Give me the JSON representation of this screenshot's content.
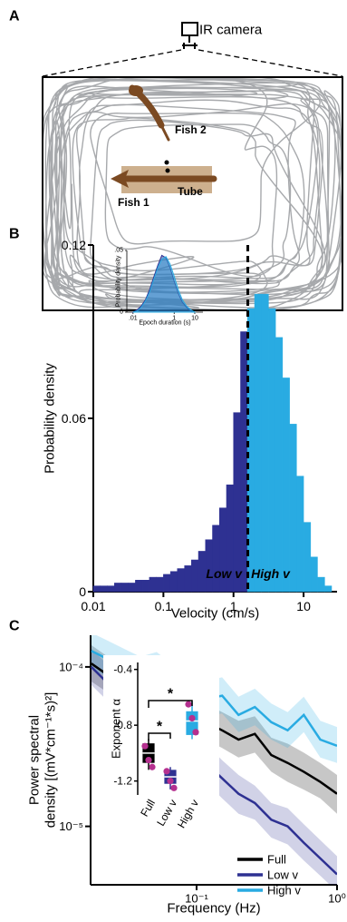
{
  "panel_labels": [
    "A",
    "B",
    "C"
  ],
  "diagram": {
    "camera_label": "IR camera",
    "fish_2": "Fish 2",
    "fish_1": "Fish 1",
    "tube": "Tube"
  },
  "chart_data": [
    {
      "type": "histogram",
      "ylabel": "Probability density",
      "xlabel": "Velocity (cm/s)",
      "xscale": "log",
      "xlim": [
        0.01,
        30
      ],
      "ylim": [
        0,
        0.12
      ],
      "xticks": [
        0.01,
        0.1,
        1,
        10
      ],
      "yticks": [
        0,
        0.06,
        0.12
      ],
      "bins": [
        0.01,
        0.0126,
        0.0158,
        0.02,
        0.0251,
        0.0316,
        0.0398,
        0.0501,
        0.0631,
        0.0794,
        0.1,
        0.126,
        0.158,
        0.2,
        0.251,
        0.316,
        0.398,
        0.501,
        0.631,
        0.794,
        1,
        1.26,
        1.58,
        2,
        2.51,
        3.16,
        3.98,
        5.01,
        6.31,
        7.94,
        10,
        12.6,
        15.8,
        20,
        25.1
      ],
      "threshold": 1.6,
      "series": [
        {
          "name": "Low v",
          "color": "#2e3192",
          "values": [
            0.002,
            0.002,
            0.002,
            0.003,
            0.003,
            0.003,
            0.004,
            0.004,
            0.005,
            0.005,
            0.006,
            0.007,
            0.008,
            0.009,
            0.011,
            0.014,
            0.018,
            0.023,
            0.029,
            0.037,
            0.062,
            0.09,
            null,
            null,
            null,
            null,
            null,
            null,
            null,
            null,
            null,
            null,
            null,
            null
          ]
        },
        {
          "name": "High v",
          "color": "#29abe2",
          "values": [
            null,
            null,
            null,
            null,
            null,
            null,
            null,
            null,
            null,
            null,
            null,
            null,
            null,
            null,
            null,
            null,
            null,
            null,
            null,
            null,
            null,
            null,
            0.098,
            0.103,
            0.103,
            0.098,
            0.088,
            0.074,
            0.058,
            0.04,
            0.024,
            0.012,
            0.005,
            0.002
          ]
        }
      ]
    },
    {
      "type": "area",
      "ylabel": "Probability density",
      "xlabel": "Epoch duration (s)",
      "xscale": "log",
      "xlim": [
        0.005,
        25
      ],
      "ylim": [
        0,
        0.05
      ],
      "xticks": [
        {
          "value": 0.01,
          "label": ".01"
        },
        1,
        10
      ],
      "yticks": [
        0,
        {
          "value": 0.05,
          "label": ".05"
        }
      ],
      "x": [
        0.01,
        0.016,
        0.025,
        0.04,
        0.063,
        0.1,
        0.16,
        0.25,
        0.4,
        0.63,
        1,
        1.6,
        2.5,
        4,
        6.3,
        10
      ],
      "series": [
        {
          "color": "#2e3192",
          "values": [
            0,
            0.002,
            0.005,
            0.01,
            0.018,
            0.028,
            0.038,
            0.046,
            0.044,
            0.036,
            0.025,
            0.015,
            0.008,
            0.004,
            0.001,
            0
          ]
        },
        {
          "color": "#29abe2",
          "values": [
            0,
            0.001,
            0.004,
            0.009,
            0.016,
            0.026,
            0.036,
            0.043,
            0.045,
            0.039,
            0.029,
            0.018,
            0.01,
            0.005,
            0.002,
            0
          ]
        }
      ]
    },
    {
      "type": "line",
      "ylabel": [
        "Power spectral",
        "density [(mV*cm⁻¹*s)²]"
      ],
      "xlabel": "Frequency (Hz)",
      "xscale": "log",
      "yscale": "log",
      "xlim": [
        0.0176,
        1
      ],
      "ylim": [
        4.3e-06,
        0.000158
      ],
      "xticks": [
        {
          "value": 0.1,
          "label": "10⁻¹"
        },
        {
          "value": 1,
          "label": "10⁰"
        }
      ],
      "yticks": [
        {
          "value": 0.0001,
          "label": "10⁻⁴"
        },
        {
          "value": 1e-05,
          "label": "10⁻⁵"
        }
      ],
      "x": [
        0.0178,
        0.0233,
        0.0304,
        0.0398,
        0.052,
        0.068,
        0.0889,
        0.116,
        0.152,
        0.199,
        0.26,
        0.34,
        0.445,
        0.58,
        0.76,
        1.0
      ],
      "series": [
        {
          "name": "Full",
          "color": "#000000",
          "values": [
            0.000105,
            8.9e-05,
            7.6e-05,
            7.9e-05,
            6.6e-05,
            5.6e-05,
            6e-05,
            4.5e-05,
            4e-05,
            3.5e-05,
            3.8e-05,
            2.8e-05,
            2.5e-05,
            2.2e-05,
            1.9e-05,
            1.6e-05
          ],
          "upper": [
            0.000137,
            0.000116,
            9.9e-05,
            0.000103,
            8.6e-05,
            7.3e-05,
            7.8e-05,
            5.9e-05,
            5.2e-05,
            4.6e-05,
            4.9e-05,
            3.6e-05,
            3.3e-05,
            2.9e-05,
            2.5e-05,
            2.1e-05
          ],
          "lower": [
            8.1e-05,
            6.9e-05,
            5.9e-05,
            6.1e-05,
            5.1e-05,
            4.3e-05,
            4.6e-05,
            3.5e-05,
            3.1e-05,
            2.7e-05,
            2.9e-05,
            2.2e-05,
            1.9e-05,
            1.7e-05,
            1.5e-05,
            1.2e-05
          ]
        },
        {
          "name": "Low v",
          "color": "#2e3192",
          "values": [
            0.0001,
            7.9e-05,
            6.3e-05,
            5e-05,
            4.5e-05,
            3.5e-05,
            3.2e-05,
            2.5e-05,
            2e-05,
            1.6e-05,
            1.4e-05,
            1.1e-05,
            1e-05,
            7.9e-06,
            6.3e-06,
            5e-06
          ],
          "upper": [
            0.00013,
            0.000103,
            8.2e-05,
            6.5e-05,
            5.9e-05,
            4.6e-05,
            4.2e-05,
            3.3e-05,
            2.6e-05,
            2.1e-05,
            1.8e-05,
            1.4e-05,
            1.3e-05,
            1.03e-05,
            8.2e-06,
            6.5e-06
          ],
          "lower": [
            7.7e-05,
            6.1e-05,
            4.9e-05,
            3.9e-05,
            3.5e-05,
            2.7e-05,
            2.5e-05,
            1.9e-05,
            1.5e-05,
            1.2e-05,
            1.1e-05,
            8.5e-06,
            7.7e-06,
            6.1e-06,
            4.9e-06,
            3.9e-06
          ]
        },
        {
          "name": "High v",
          "color": "#29abe2",
          "values": [
            0.000126,
            0.000112,
            0.0001,
            8.9e-05,
            9.5e-05,
            7.9e-05,
            7.1e-05,
            6.3e-05,
            6.6e-05,
            5e-05,
            5.6e-05,
            4.5e-05,
            4e-05,
            5e-05,
            3.5e-05,
            3.2e-05
          ],
          "upper": [
            0.000164,
            0.000146,
            0.00013,
            0.000116,
            0.000124,
            0.000103,
            9.2e-05,
            8.2e-05,
            8.6e-05,
            6.5e-05,
            7.3e-05,
            5.9e-05,
            5.2e-05,
            6.5e-05,
            4.6e-05,
            4.2e-05
          ],
          "lower": [
            9.7e-05,
            8.6e-05,
            7.7e-05,
            6.9e-05,
            7.3e-05,
            6.1e-05,
            5.5e-05,
            4.9e-05,
            5.1e-05,
            3.9e-05,
            4.3e-05,
            3.5e-05,
            3.1e-05,
            3.9e-05,
            2.7e-05,
            2.5e-05
          ]
        }
      ]
    },
    {
      "type": "box",
      "ylabel": "Exponent α",
      "categories": [
        "Full",
        "Low v",
        "High v"
      ],
      "ylim": [
        -1.3,
        -0.35
      ],
      "yticks": [
        -0.4,
        -0.8,
        -1.2
      ],
      "colors": [
        "#000000",
        "#2e3192",
        "#29abe2"
      ],
      "point_color": "#b5308f",
      "boxes": [
        {
          "whislo": -1.12,
          "q1": -1.07,
          "med": -1.0,
          "q3": -0.93,
          "whishi": -0.9
        },
        {
          "whislo": -1.26,
          "q1": -1.22,
          "med": -1.17,
          "q3": -1.12,
          "whishi": -1.1
        },
        {
          "whislo": -0.9,
          "q1": -0.87,
          "med": -0.77,
          "q3": -0.7,
          "whishi": -0.63
        }
      ],
      "points": [
        [
          -0.95,
          -1.05,
          -1.1
        ],
        [
          -1.13,
          -1.2,
          -1.25
        ],
        [
          -0.65,
          -0.75,
          -0.85
        ]
      ],
      "annotations": [
        "*",
        "*"
      ]
    }
  ]
}
